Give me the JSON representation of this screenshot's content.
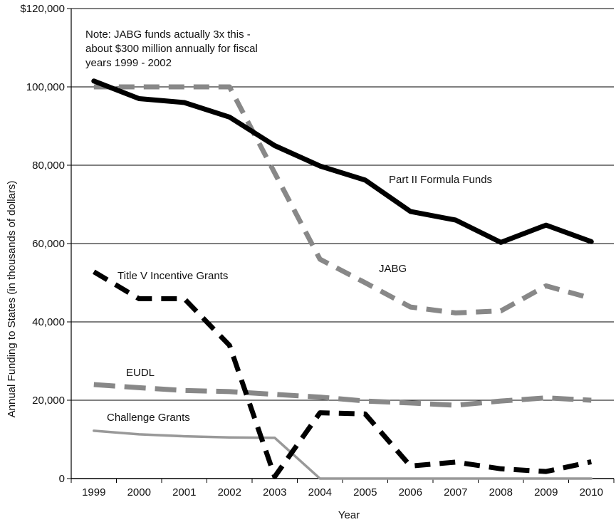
{
  "chart_data": {
    "type": "line",
    "xlabel": "Year",
    "ylabel": "Annual Funding to States (in thousands of dollars)",
    "x": [
      "1999",
      "2000",
      "2001",
      "2002",
      "2003",
      "2004",
      "2005",
      "2006",
      "2007",
      "2008",
      "2009",
      "2010"
    ],
    "ylim": [
      0,
      120000
    ],
    "y_ticks": [
      0,
      20000,
      40000,
      60000,
      80000,
      100000,
      120000
    ],
    "y_tick_labels": [
      "0",
      "20,000",
      "40,000",
      "60,000",
      "80,000",
      "100,000",
      "$120,000"
    ],
    "grid": "horizontal",
    "note": {
      "lines": [
        "Note: JABG funds actually 3x this -",
        "about $300 million annually for fiscal",
        "years 1999 - 2002"
      ]
    },
    "series": [
      {
        "name": "Part II Formula Funds",
        "color": "#000000",
        "style": "solid-thick",
        "values": [
          101500,
          97000,
          96000,
          92300,
          85000,
          79800,
          76200,
          68200,
          66000,
          60300,
          64700,
          60500
        ]
      },
      {
        "name": "JABG",
        "color": "#888888",
        "style": "dashed-thick",
        "values": [
          100000,
          100000,
          100000,
          100000,
          78000,
          56000,
          50000,
          43800,
          42300,
          42800,
          49200,
          46000
        ]
      },
      {
        "name": "Title V Incentive Grants",
        "color": "#000000",
        "style": "dashed-thick",
        "values": [
          52800,
          45900,
          45900,
          34000,
          500,
          16800,
          16500,
          3200,
          4200,
          2500,
          1800,
          4300
        ]
      },
      {
        "name": "EUDL",
        "color": "#888888",
        "style": "dashed-long",
        "values": [
          24000,
          23200,
          22500,
          22200,
          21500,
          20800,
          19800,
          19300,
          18700,
          19800,
          20600,
          20000
        ]
      },
      {
        "name": "Challenge Grants",
        "color": "#999999",
        "style": "solid-thin",
        "values": [
          12200,
          11300,
          10800,
          10500,
          10400,
          0,
          0,
          0,
          0,
          0,
          0,
          0
        ]
      }
    ]
  }
}
